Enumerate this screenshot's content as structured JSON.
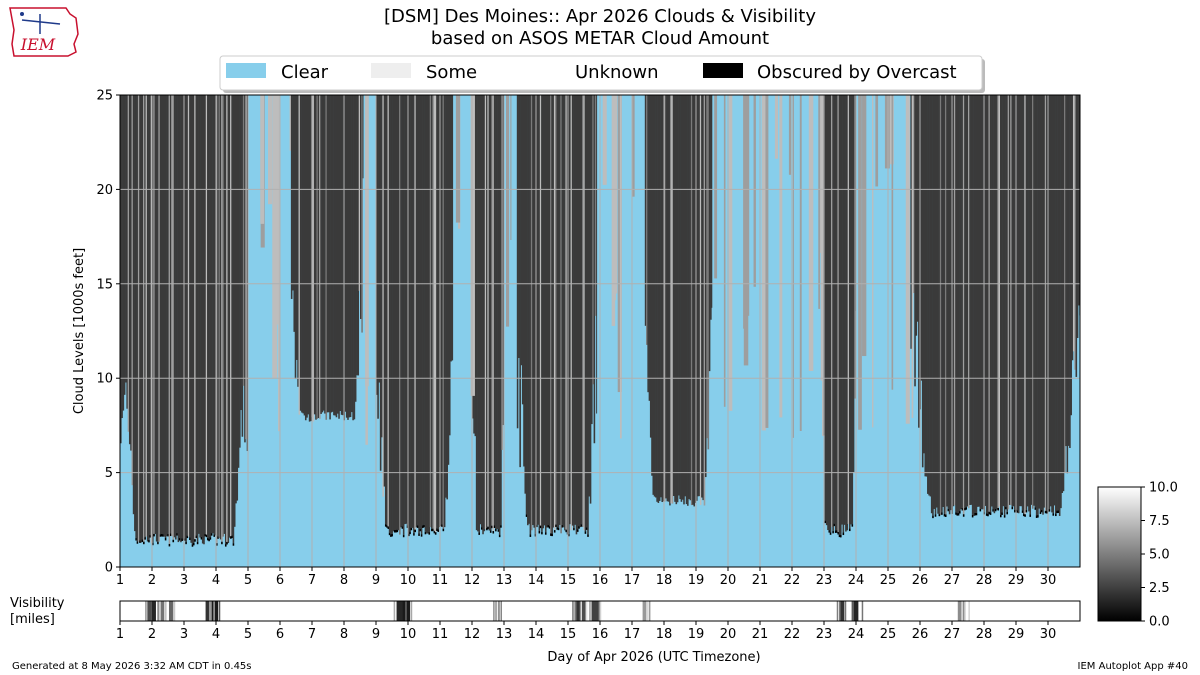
{
  "logo": {
    "text": "IEM"
  },
  "footer": {
    "generated": "Generated at 8 May 2026 3:32 AM CDT in 0.45s",
    "app": "IEM Autoplot App #40"
  },
  "colors": {
    "clear": "#87ceeb",
    "some": "#eeeeee",
    "unknown": "#ffffff",
    "obscured": "#000000",
    "overcast": "#3a3a3a",
    "broken": "#7a7a7a",
    "scattered": "#9e9e9e",
    "few": "#bdbdbd"
  },
  "chart_data": [
    {
      "type": "heatmap",
      "title": "[DSM] Des Moines:: Apr 2026 Clouds & Visibility",
      "subtitle": "based on ASOS METAR Cloud Amount",
      "ylabel": "Cloud Levels [1000s feet]",
      "ylim": [
        0,
        25
      ],
      "yticks": [
        0,
        5,
        10,
        15,
        20,
        25
      ],
      "xlim": [
        1,
        31
      ],
      "xticks": [
        1,
        2,
        3,
        4,
        5,
        6,
        7,
        8,
        9,
        10,
        11,
        12,
        13,
        14,
        15,
        16,
        17,
        18,
        19,
        20,
        21,
        22,
        23,
        24,
        25,
        26,
        27,
        28,
        29,
        30
      ],
      "grid": true,
      "legend": [
        {
          "label": "Clear",
          "color": "#87ceeb"
        },
        {
          "label": "Some",
          "color": "#eeeeee"
        },
        {
          "label": "Unknown",
          "color": "#ffffff"
        },
        {
          "label": "Obscured by Overcast",
          "color": "#000000"
        }
      ],
      "legend_placement": "top-center",
      "cloud_periods": [
        {
          "start": 1.0,
          "end": 5.0,
          "state": "overcast",
          "base_kft": 1.5
        },
        {
          "start": 5.0,
          "end": 6.3,
          "state": "clear"
        },
        {
          "start": 6.3,
          "end": 8.6,
          "state": "overcast",
          "base_kft": 8.0
        },
        {
          "start": 8.6,
          "end": 9.0,
          "state": "clear"
        },
        {
          "start": 9.0,
          "end": 11.4,
          "state": "overcast",
          "base_kft": 2.0
        },
        {
          "start": 11.4,
          "end": 12.0,
          "state": "clear"
        },
        {
          "start": 12.0,
          "end": 13.0,
          "state": "overcast",
          "base_kft": 2.0
        },
        {
          "start": 13.0,
          "end": 13.4,
          "state": "clear"
        },
        {
          "start": 13.4,
          "end": 15.9,
          "state": "overcast",
          "base_kft": 2.0
        },
        {
          "start": 15.9,
          "end": 17.4,
          "state": "clear"
        },
        {
          "start": 17.4,
          "end": 19.5,
          "state": "overcast",
          "base_kft": 3.5
        },
        {
          "start": 19.5,
          "end": 22.9,
          "state": "clear"
        },
        {
          "start": 22.9,
          "end": 24.0,
          "state": "overcast",
          "base_kft": 2.0
        },
        {
          "start": 24.0,
          "end": 25.7,
          "state": "clear"
        },
        {
          "start": 25.7,
          "end": 31.0,
          "state": "overcast",
          "base_kft": 3.0
        }
      ]
    },
    {
      "type": "heatmap",
      "ylabel": "Visibility [miles]",
      "xlabel": "Day of Apr 2026 (UTC Timezone)",
      "xlim": [
        1,
        31
      ],
      "xticks": [
        1,
        2,
        3,
        4,
        5,
        6,
        7,
        8,
        9,
        10,
        11,
        12,
        13,
        14,
        15,
        16,
        17,
        18,
        19,
        20,
        21,
        22,
        23,
        24,
        25,
        26,
        27,
        28,
        29,
        30
      ],
      "baseline_miles": 10.0,
      "low_visibility_events": [
        {
          "x": 1.9,
          "miles": 3.0
        },
        {
          "x": 2.05,
          "miles": 1.5
        },
        {
          "x": 2.3,
          "miles": 4.5
        },
        {
          "x": 2.6,
          "miles": 4.0
        },
        {
          "x": 3.75,
          "miles": 2.0
        },
        {
          "x": 3.95,
          "miles": 1.0
        },
        {
          "x": 9.75,
          "miles": 1.5
        },
        {
          "x": 9.95,
          "miles": 1.0
        },
        {
          "x": 12.8,
          "miles": 5.0
        },
        {
          "x": 15.3,
          "miles": 2.0
        },
        {
          "x": 15.45,
          "miles": 3.0
        },
        {
          "x": 15.85,
          "miles": 2.5
        },
        {
          "x": 17.45,
          "miles": 6.0
        },
        {
          "x": 23.6,
          "miles": 2.0
        },
        {
          "x": 24.0,
          "miles": 1.5
        },
        {
          "x": 27.3,
          "miles": 5.5
        }
      ],
      "colorbar": {
        "min": 0.0,
        "max": 10.0,
        "ticks": [
          "0.0",
          "2.5",
          "5.0",
          "7.5",
          "10.0"
        ]
      }
    }
  ]
}
